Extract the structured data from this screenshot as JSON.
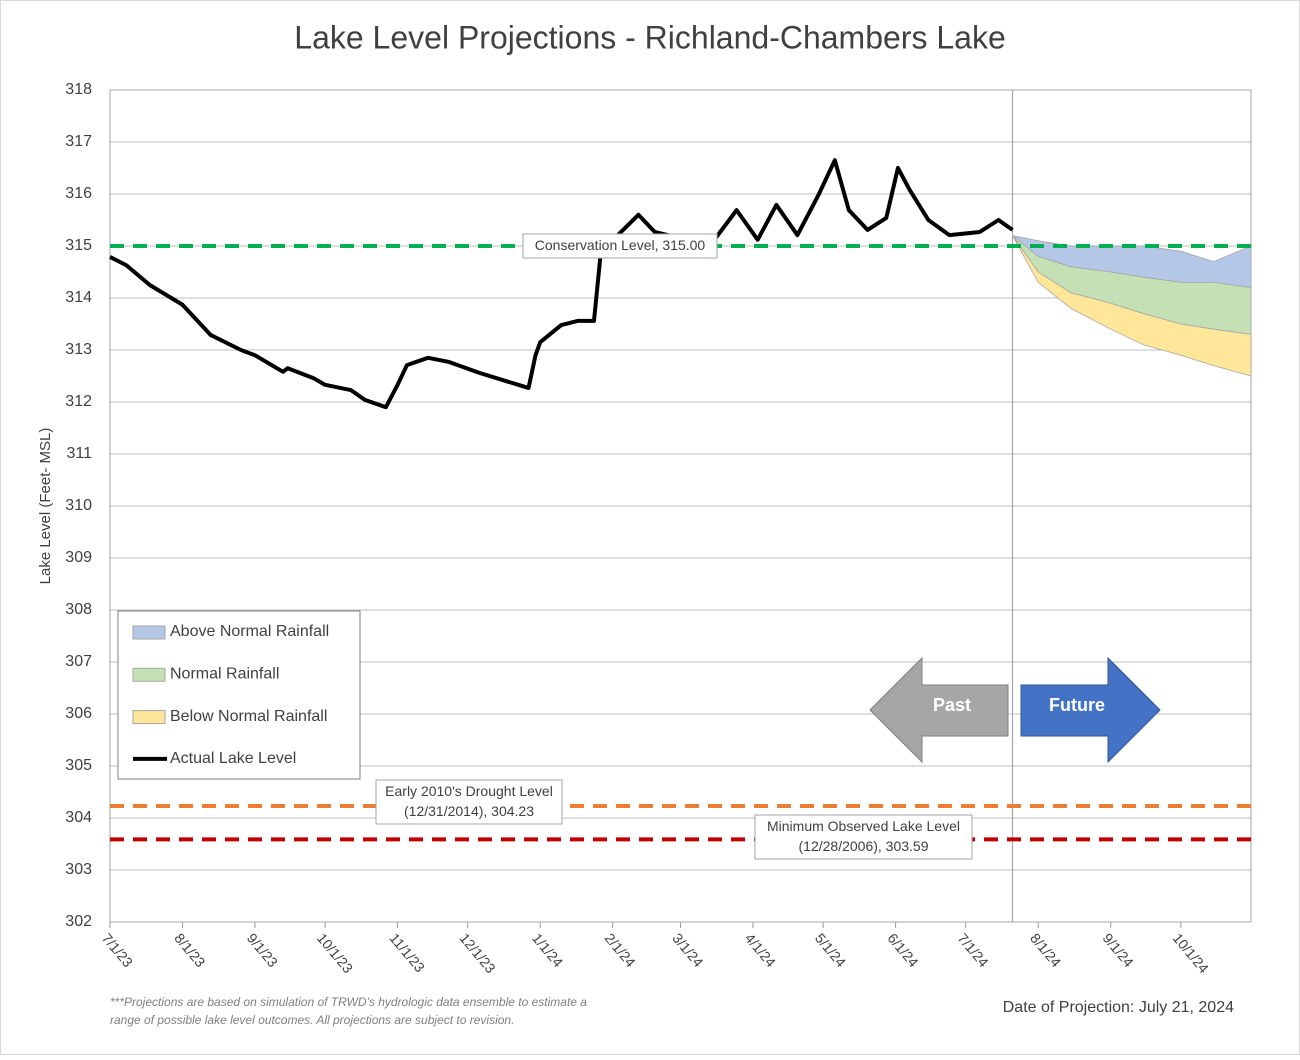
{
  "chart_data": {
    "type": "area-line",
    "title": "Lake Level Projections - Richland-Chambers Lake",
    "y_label": "Lake Level (Feet- MSL)",
    "ylim": [
      302,
      318
    ],
    "yticks": [
      302,
      303,
      304,
      305,
      306,
      307,
      308,
      309,
      310,
      311,
      312,
      313,
      314,
      315,
      316,
      317,
      318
    ],
    "xlim": [
      "2023-07-01",
      "2024-10-31"
    ],
    "xticks": [
      {
        "value": "2023-07-01",
        "label": "7/1/23"
      },
      {
        "value": "2023-08-01",
        "label": "8/1/23"
      },
      {
        "value": "2023-09-01",
        "label": "9/1/23"
      },
      {
        "value": "2023-10-01",
        "label": "10/1/23"
      },
      {
        "value": "2023-11-01",
        "label": "11/1/23"
      },
      {
        "value": "2023-12-01",
        "label": "12/1/23"
      },
      {
        "value": "2024-01-01",
        "label": "1/1/24"
      },
      {
        "value": "2024-02-01",
        "label": "2/1/24"
      },
      {
        "value": "2024-03-01",
        "label": "3/1/24"
      },
      {
        "value": "2024-04-01",
        "label": "4/1/24"
      },
      {
        "value": "2024-05-01",
        "label": "5/1/24"
      },
      {
        "value": "2024-06-01",
        "label": "6/1/24"
      },
      {
        "value": "2024-07-01",
        "label": "7/1/24"
      },
      {
        "value": "2024-08-01",
        "label": "8/1/24"
      },
      {
        "value": "2024-09-01",
        "label": "9/1/24"
      },
      {
        "value": "2024-10-01",
        "label": "10/1/24"
      }
    ],
    "grid": true,
    "bands_x": [
      "2024-07-21",
      "2024-08-01",
      "2024-08-15",
      "2024-09-01",
      "2024-09-15",
      "2024-10-01",
      "2024-10-15",
      "2024-10-31"
    ],
    "bands": [
      {
        "name": "Above Normal Rainfall",
        "color": "#b4c7e7",
        "upper": [
          315.2,
          315.1,
          315.0,
          315.0,
          315.0,
          314.9,
          314.7,
          315.0
        ],
        "lower": [
          315.2,
          314.8,
          314.6,
          314.5,
          314.4,
          314.3,
          314.3,
          314.2
        ]
      },
      {
        "name": "Normal Rainfall",
        "color": "#c5e0b4",
        "upper": [
          315.2,
          314.8,
          314.6,
          314.5,
          314.4,
          314.3,
          314.3,
          314.2
        ],
        "lower": [
          315.2,
          314.5,
          314.1,
          313.9,
          313.7,
          313.5,
          313.4,
          313.3
        ]
      },
      {
        "name": "Below Normal Rainfall",
        "color": "#ffe699",
        "upper": [
          315.2,
          314.5,
          314.1,
          313.9,
          313.7,
          313.5,
          313.4,
          313.3
        ],
        "lower": [
          315.2,
          314.3,
          313.8,
          313.4,
          313.1,
          312.9,
          312.7,
          312.5
        ]
      }
    ],
    "series": [
      {
        "name": "Actual Lake Level",
        "color": "#000000",
        "x": [
          "2023-07-01",
          "2023-07-08",
          "2023-07-18",
          "2023-08-01",
          "2023-08-13",
          "2023-08-26",
          "2023-09-01",
          "2023-09-13",
          "2023-09-15",
          "2023-09-26",
          "2023-10-01",
          "2023-10-12",
          "2023-10-18",
          "2023-10-27",
          "2023-11-01",
          "2023-11-05",
          "2023-11-14",
          "2023-11-23",
          "2023-12-06",
          "2023-12-19",
          "2023-12-27",
          "2023-12-30",
          "2024-01-01",
          "2024-01-10",
          "2024-01-17",
          "2024-01-24",
          "2024-01-27",
          "2024-02-03",
          "2024-02-12",
          "2024-02-19",
          "2024-03-01",
          "2024-03-16",
          "2024-03-25",
          "2024-04-03",
          "2024-04-11",
          "2024-04-20",
          "2024-04-29",
          "2024-05-06",
          "2024-05-12",
          "2024-05-20",
          "2024-05-28",
          "2024-06-02",
          "2024-06-07",
          "2024-06-15",
          "2024-06-24",
          "2024-07-07",
          "2024-07-15",
          "2024-07-21"
        ],
        "values": [
          314.79,
          314.63,
          314.25,
          313.87,
          313.29,
          313.0,
          312.9,
          312.58,
          312.65,
          312.46,
          312.33,
          312.23,
          312.04,
          311.9,
          312.33,
          312.71,
          312.85,
          312.77,
          312.56,
          312.38,
          312.27,
          312.9,
          313.15,
          313.48,
          313.56,
          313.56,
          314.92,
          315.2,
          315.6,
          315.27,
          315.15,
          315.15,
          315.69,
          315.12,
          315.79,
          315.21,
          315.98,
          316.65,
          315.69,
          315.31,
          315.54,
          316.5,
          316.08,
          315.5,
          315.21,
          315.27,
          315.5,
          315.31
        ]
      }
    ],
    "reference_lines": [
      {
        "label": "Conservation Level, 315.00",
        "value": 315.0,
        "color": "#00b050"
      },
      {
        "label": "Early 2010's Drought Level\n(12/31/2014), 304.23",
        "value": 304.23,
        "color": "#ed7d31"
      },
      {
        "label": "Minimum Observed Lake Level\n(12/28/2006), 303.59",
        "value": 303.59,
        "color": "#c00000"
      }
    ],
    "projection_line_x": "2024-07-21",
    "arrows": [
      "Past",
      "Future"
    ],
    "footnote": "***Projections are based on simulation of TRWD's hydrologic data ensemble to estimate a range of possible lake level outcomes.  All projections are subject to revision.",
    "projection_date": "Date of Projection: July 21, 2024"
  }
}
